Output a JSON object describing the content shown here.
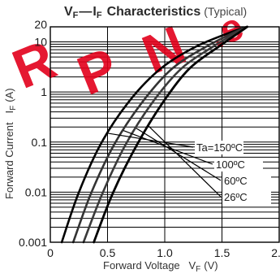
{
  "chart_data": {
    "type": "line",
    "title": "VF — IF Characteristics (Typical)",
    "title_parts": {
      "vf": "V",
      "vf_sub": "F",
      "dash": "—",
      "if": "I",
      "if_sub": "F",
      "rest": "Characteristics",
      "note": "(Typical)"
    },
    "xlabel": "Forward Voltage   V",
    "xlabel_sub": "F",
    "xlabel_unit": "(V)",
    "ylabel": "Forward Current   I",
    "ylabel_sub": "F",
    "ylabel_unit": "(A)",
    "x_scale": "linear",
    "y_scale": "log",
    "xlim": [
      0,
      2.0
    ],
    "ylim": [
      0.001,
      20
    ],
    "x_ticks": [
      0,
      0.5,
      1.0,
      1.5,
      2.0
    ],
    "x_tick_labels": [
      "0",
      "0.5",
      "1.0",
      "1.5",
      "2.0"
    ],
    "y_ticks": [
      0.001,
      0.01,
      0.1,
      1,
      10,
      20
    ],
    "y_tick_labels": [
      "0.001",
      "0.01",
      "0.1",
      "1",
      "10",
      "20"
    ],
    "grid": true,
    "series": [
      {
        "name": "Ta=150ºC",
        "x": [
          0.1,
          0.25,
          0.45,
          0.7,
          0.97,
          1.27,
          1.59,
          1.72
        ],
        "y": [
          0.001,
          0.01,
          0.1,
          0.7,
          3.0,
          8.0,
          16.0,
          20.0
        ],
        "color": "#000000"
      },
      {
        "name": "100ºC",
        "x": [
          0.2,
          0.36,
          0.57,
          0.82,
          1.07,
          1.36,
          1.62,
          1.72
        ],
        "y": [
          0.001,
          0.01,
          0.1,
          0.7,
          3.0,
          8.0,
          16.0,
          20.0
        ],
        "color": "#333333"
      },
      {
        "name": "60ºC",
        "x": [
          0.29,
          0.46,
          0.67,
          0.91,
          1.15,
          1.42,
          1.64,
          1.72
        ],
        "y": [
          0.001,
          0.01,
          0.1,
          0.7,
          3.0,
          8.0,
          16.0,
          20.0
        ],
        "color": "#3a3a3a"
      },
      {
        "name": "26ºC",
        "x": [
          0.38,
          0.55,
          0.77,
          1.0,
          1.22,
          1.47,
          1.66,
          1.72
        ],
        "y": [
          0.001,
          0.01,
          0.1,
          0.7,
          3.0,
          8.0,
          16.0,
          20.0
        ],
        "color": "#000000"
      }
    ],
    "legend_placement": "right, beside curves",
    "watermark_text": "RPN.ec"
  }
}
